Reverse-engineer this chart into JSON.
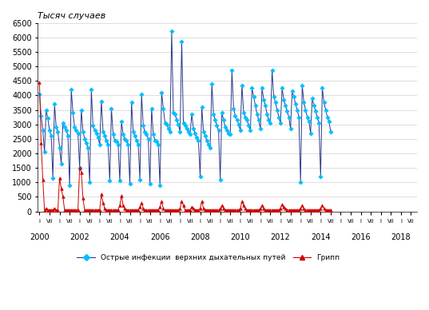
{
  "title": "Тысяч случаев",
  "xlabel_years": [
    2000,
    2002,
    2004,
    2006,
    2008,
    2010,
    2012,
    2014,
    2016,
    2018
  ],
  "legend_arvi": "Острые инфекции  верхних дыхательных путей",
  "legend_flu": "Грипп",
  "arvi_color": "#2b3a8c",
  "arvi_marker_color": "#00bfff",
  "flu_color": "#cc0000",
  "flu_marker_color": "#cc0000",
  "ylim": [
    0,
    6500
  ],
  "yticks": [
    0,
    500,
    1000,
    1500,
    2000,
    2500,
    3000,
    3500,
    4000,
    4500,
    5000,
    5500,
    6000,
    6500
  ],
  "arvi": [
    4050,
    3300,
    2800,
    2050,
    3500,
    3200,
    2800,
    2600,
    1150,
    3700,
    2900,
    2750,
    2200,
    1650,
    3050,
    2900,
    2800,
    2600,
    900,
    4200,
    3400,
    2900,
    2800,
    2700,
    1500,
    3500,
    2750,
    2500,
    2350,
    2200,
    1000,
    4200,
    2950,
    2800,
    2700,
    2550,
    2300,
    3800,
    2750,
    2600,
    2450,
    2300,
    1050,
    3550,
    2650,
    2450,
    2400,
    2300,
    1050,
    3100,
    2650,
    2500,
    2450,
    2300,
    950,
    3750,
    2750,
    2600,
    2450,
    2300,
    1100,
    4050,
    2950,
    2750,
    2650,
    2500,
    950,
    3550,
    2650,
    2450,
    2400,
    2300,
    900,
    4100,
    3550,
    3050,
    3000,
    2850,
    2750,
    6200,
    3400,
    3350,
    3150,
    3000,
    2750,
    5850,
    3050,
    2950,
    2850,
    2750,
    2650,
    3350,
    2850,
    2700,
    2550,
    2450,
    1200,
    3600,
    2750,
    2600,
    2450,
    2300,
    2200,
    4400,
    3350,
    3150,
    2950,
    2800,
    1100,
    3400,
    3150,
    2900,
    2800,
    2700,
    2650,
    4850,
    3550,
    3300,
    3150,
    3000,
    2800,
    4350,
    3400,
    3250,
    3150,
    2950,
    2800,
    4250,
    3950,
    3650,
    3350,
    3150,
    2850,
    4250,
    3850,
    3650,
    3350,
    3150,
    3050,
    4850,
    3950,
    3750,
    3500,
    3250,
    3050,
    4250,
    3850,
    3650,
    3450,
    3250,
    2850,
    4150,
    3950,
    3700,
    3500,
    3250,
    1000,
    4350,
    3750,
    3500,
    3250,
    3100,
    2700,
    3900,
    3650,
    3450,
    3250,
    3050,
    1200,
    4250,
    3750,
    3500,
    3250,
    3100,
    2750
  ],
  "flu": [
    4450,
    2350,
    1100,
    50,
    100,
    50,
    50,
    50,
    50,
    100,
    50,
    50,
    1150,
    800,
    500,
    50,
    50,
    50,
    50,
    50,
    50,
    50,
    50,
    50,
    1500,
    1350,
    450,
    50,
    50,
    50,
    50,
    50,
    50,
    50,
    50,
    50,
    50,
    600,
    300,
    100,
    50,
    50,
    50,
    50,
    50,
    50,
    50,
    50,
    200,
    550,
    200,
    100,
    50,
    50,
    50,
    50,
    50,
    50,
    50,
    50,
    150,
    300,
    100,
    50,
    50,
    50,
    50,
    50,
    50,
    50,
    50,
    50,
    150,
    350,
    100,
    50,
    50,
    50,
    50,
    50,
    50,
    50,
    50,
    50,
    100,
    350,
    200,
    50,
    50,
    50,
    50,
    150,
    100,
    50,
    50,
    50,
    100,
    350,
    100,
    50,
    50,
    50,
    50,
    50,
    50,
    50,
    50,
    50,
    100,
    200,
    100,
    50,
    50,
    50,
    50,
    50,
    50,
    50,
    50,
    50,
    100,
    350,
    200,
    100,
    50,
    50,
    50,
    50,
    50,
    50,
    50,
    50,
    100,
    200,
    100,
    50,
    50,
    50,
    50,
    50,
    50,
    50,
    50,
    50,
    100,
    250,
    150,
    100,
    50,
    50,
    50,
    50,
    50,
    50,
    50,
    50,
    100,
    200,
    100,
    50,
    50,
    50,
    50,
    50,
    50,
    50,
    50,
    50,
    100,
    200,
    100,
    50,
    50,
    50,
    50
  ]
}
